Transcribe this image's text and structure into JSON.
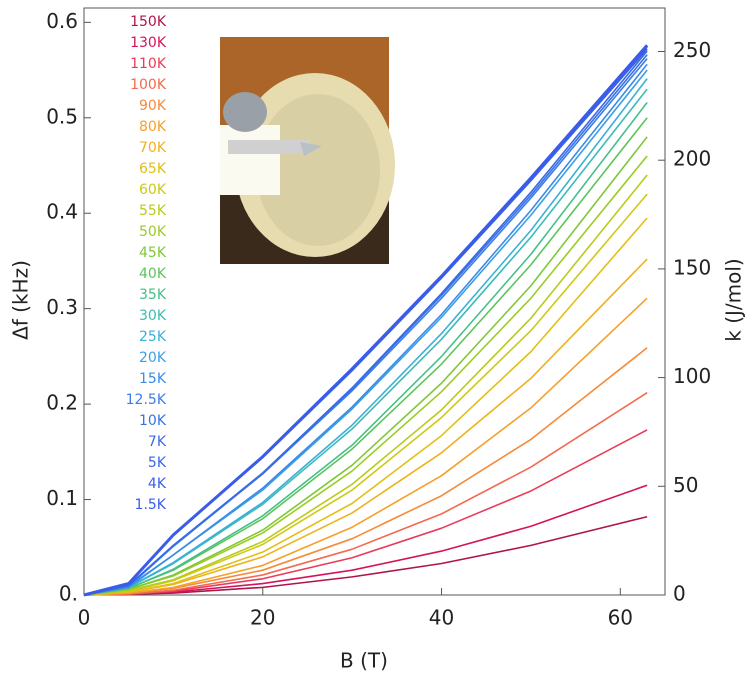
{
  "chart_data": {
    "type": "line",
    "x_label": "B (T)",
    "y_label": "Δf (kHz)",
    "y2_label": "k (J/mol)",
    "xlim": [
      0,
      65
    ],
    "xticks": [
      0,
      20,
      40,
      60
    ],
    "ylim": [
      0,
      0.615
    ],
    "yticks": [
      {
        "value": 0,
        "label": "0."
      },
      0.1,
      0.2,
      0.3,
      0.4,
      0.5,
      0.6
    ],
    "y2lim": [
      0,
      270
    ],
    "y2ticks": [
      0,
      50,
      100,
      150,
      200,
      250
    ],
    "legend": "upper left",
    "x": [
      0,
      5,
      10,
      20,
      30,
      40,
      50,
      63
    ],
    "series": [
      {
        "name": "150K",
        "color": "#b0154a",
        "values": [
          0,
          0.001,
          0.002,
          0.008,
          0.019,
          0.033,
          0.052,
          0.082
        ]
      },
      {
        "name": "130K",
        "color": "#d4145a",
        "values": [
          0,
          0.001,
          0.003,
          0.012,
          0.026,
          0.046,
          0.072,
          0.115
        ]
      },
      {
        "name": "110K",
        "color": "#ea3c5a",
        "values": [
          0,
          0.001,
          0.004,
          0.017,
          0.039,
          0.07,
          0.109,
          0.173
        ]
      },
      {
        "name": "100K",
        "color": "#f26a4f",
        "values": [
          0,
          0.001,
          0.005,
          0.021,
          0.048,
          0.085,
          0.134,
          0.212
        ]
      },
      {
        "name": "90K",
        "color": "#f58a3a",
        "values": [
          0,
          0.002,
          0.007,
          0.026,
          0.059,
          0.104,
          0.163,
          0.259
        ]
      },
      {
        "name": "80K",
        "color": "#f5a02a",
        "values": [
          0,
          0.002,
          0.008,
          0.031,
          0.071,
          0.125,
          0.196,
          0.311
        ]
      },
      {
        "name": "70K",
        "color": "#eeb21e",
        "values": [
          0,
          0.003,
          0.011,
          0.04,
          0.086,
          0.149,
          0.227,
          0.352
        ]
      },
      {
        "name": "65K",
        "color": "#e2bf14",
        "values": [
          0,
          0.003,
          0.012,
          0.045,
          0.096,
          0.167,
          0.255,
          0.395
        ]
      },
      {
        "name": "60K",
        "color": "#cfc814",
        "values": [
          0,
          0.004,
          0.015,
          0.053,
          0.11,
          0.186,
          0.277,
          0.42
        ]
      },
      {
        "name": "55K",
        "color": "#b8cc1a",
        "values": [
          0,
          0.005,
          0.016,
          0.056,
          0.116,
          0.194,
          0.29,
          0.44
        ]
      },
      {
        "name": "50K",
        "color": "#9ccc24",
        "values": [
          0,
          0.006,
          0.02,
          0.065,
          0.13,
          0.213,
          0.311,
          0.46
        ]
      },
      {
        "name": "45K",
        "color": "#7ec838",
        "values": [
          0,
          0.006,
          0.021,
          0.068,
          0.136,
          0.222,
          0.324,
          0.48
        ]
      },
      {
        "name": "40K",
        "color": "#5cc45a",
        "values": [
          0,
          0.007,
          0.026,
          0.08,
          0.153,
          0.242,
          0.346,
          0.5
        ]
      },
      {
        "name": "35K",
        "color": "#45c08a",
        "values": [
          0,
          0.007,
          0.027,
          0.083,
          0.157,
          0.25,
          0.357,
          0.516
        ]
      },
      {
        "name": "30K",
        "color": "#3cbcb4",
        "values": [
          0,
          0.008,
          0.033,
          0.095,
          0.174,
          0.268,
          0.375,
          0.53
        ]
      },
      {
        "name": "25K",
        "color": "#3ab0d8",
        "values": [
          0,
          0.008,
          0.034,
          0.097,
          0.178,
          0.274,
          0.382,
          0.541
        ]
      },
      {
        "name": "20K",
        "color": "#3a9ee6",
        "values": [
          0,
          0.008,
          0.042,
          0.11,
          0.195,
          0.291,
          0.398,
          0.55
        ]
      },
      {
        "name": "15K",
        "color": "#3a8ce8",
        "values": [
          0,
          0.009,
          0.042,
          0.112,
          0.197,
          0.294,
          0.403,
          0.556
        ]
      },
      {
        "name": "12.5K",
        "color": "#3a7ee8",
        "values": [
          0,
          0.009,
          0.051,
          0.127,
          0.214,
          0.311,
          0.416,
          0.562
        ]
      },
      {
        "name": "10K",
        "color": "#3a72e6",
        "values": [
          0,
          0.01,
          0.052,
          0.127,
          0.216,
          0.314,
          0.419,
          0.566
        ]
      },
      {
        "name": "7K",
        "color": "#3a6ae6",
        "values": [
          0,
          0.01,
          0.052,
          0.128,
          0.217,
          0.316,
          0.422,
          0.57
        ]
      },
      {
        "name": "5K",
        "color": "#3a64e6",
        "values": [
          0,
          0.011,
          0.063,
          0.144,
          0.235,
          0.332,
          0.434,
          0.572
        ]
      },
      {
        "name": "4K",
        "color": "#3a60e8",
        "values": [
          0,
          0.011,
          0.063,
          0.145,
          0.236,
          0.333,
          0.435,
          0.574
        ]
      },
      {
        "name": "1.5K",
        "color": "#3a5ce8",
        "values": [
          0,
          0.012,
          0.063,
          0.145,
          0.237,
          0.334,
          0.437,
          0.576
        ]
      }
    ]
  }
}
